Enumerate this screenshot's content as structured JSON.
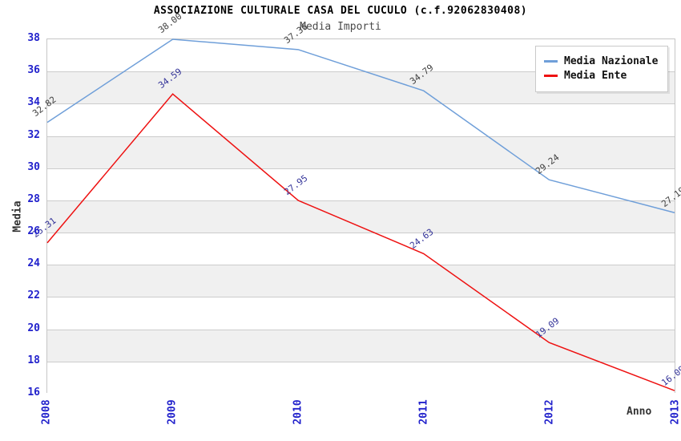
{
  "title": "ASSOCIAZIONE CULTURALE CASA DEL CUCULO (c.f.92062830408)",
  "subtitle": "Media Importi",
  "chart_data": {
    "type": "line",
    "x": [
      "2008",
      "2009",
      "2010",
      "2011",
      "2012",
      "2013"
    ],
    "series": [
      {
        "name": "Media Nazionale",
        "color": "#6f9fd9",
        "label_color": "#404040",
        "values": [
          32.82,
          38.0,
          37.36,
          34.79,
          29.24,
          27.19
        ]
      },
      {
        "name": "Media Ente",
        "color": "#ee1111",
        "label_color": "#333399",
        "values": [
          25.31,
          34.59,
          27.95,
          24.63,
          19.09,
          16.09
        ]
      }
    ],
    "xlabel": "Anno",
    "ylabel": "Media",
    "ylim": [
      16,
      38
    ],
    "ytick_step": 2,
    "yticks": [
      16,
      18,
      20,
      22,
      24,
      26,
      28,
      30,
      32,
      34,
      36,
      38
    ],
    "grid": "horizontal-bands",
    "band_color": "#f0f0f0",
    "gridline_color": "#cccccc",
    "tick_label_color": "#2222cc",
    "legend_position": "top-right",
    "data_labels": "two-decimal, rotated"
  }
}
